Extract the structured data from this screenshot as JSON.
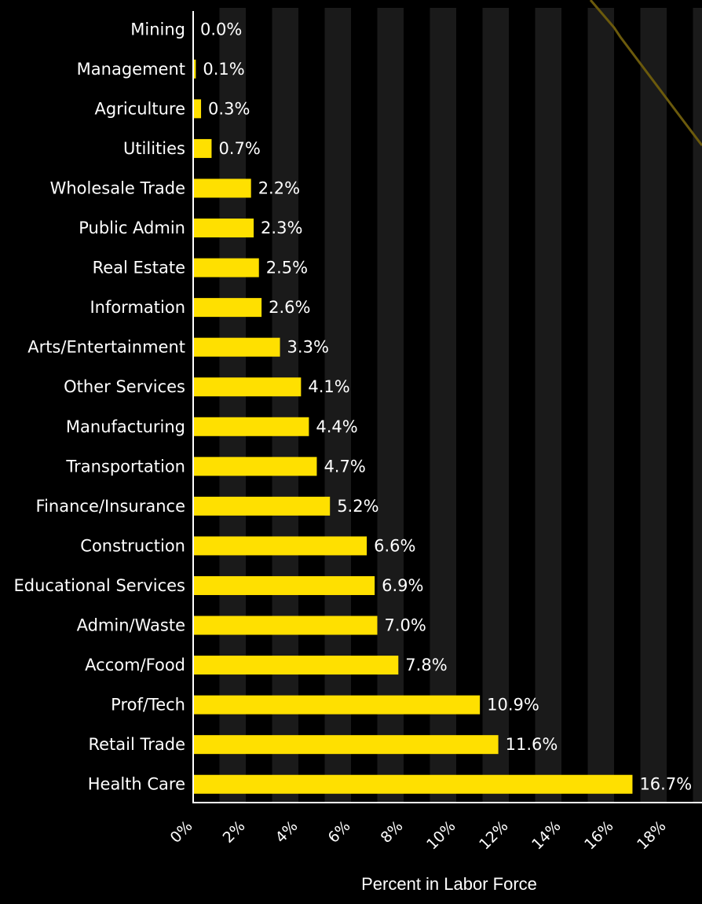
{
  "chart_data": {
    "type": "bar",
    "orientation": "horizontal",
    "categories": [
      "Mining",
      "Management",
      "Agriculture",
      "Utilities",
      "Wholesale Trade",
      "Public Admin",
      "Real Estate",
      "Information",
      "Arts/Entertainment",
      "Other Services",
      "Manufacturing",
      "Transportation",
      "Finance/Insurance",
      "Construction",
      "Educational Services",
      "Admin/Waste",
      "Accom/Food",
      "Prof/Tech",
      "Retail Trade",
      "Health Care"
    ],
    "values": [
      0.0,
      0.1,
      0.3,
      0.7,
      2.2,
      2.3,
      2.5,
      2.6,
      3.3,
      4.1,
      4.4,
      4.7,
      5.2,
      6.6,
      6.9,
      7.0,
      7.8,
      10.9,
      11.6,
      16.7
    ],
    "value_labels": [
      "0.0%",
      "0.1%",
      "0.3%",
      "0.7%",
      "2.2%",
      "2.3%",
      "2.5%",
      "2.6%",
      "3.3%",
      "4.1%",
      "4.4%",
      "4.7%",
      "5.2%",
      "6.6%",
      "6.9%",
      "7.0%",
      "7.8%",
      "10.9%",
      "11.6%",
      "16.7%"
    ],
    "x_ticks": [
      "0%",
      "2%",
      "4%",
      "6%",
      "8%",
      "10%",
      "12%",
      "14%",
      "16%",
      "18%"
    ],
    "xlabel": "Percent in Labor Force",
    "ylabel": "",
    "xlim": [
      0,
      19
    ],
    "grid": "alternating vertical bands",
    "legend": "none"
  },
  "colors": {
    "background": "#000000",
    "bar": "#FFE000",
    "band": "#1a1a1a",
    "text": "#ffffff",
    "decor_line": "#6b5a0c"
  }
}
